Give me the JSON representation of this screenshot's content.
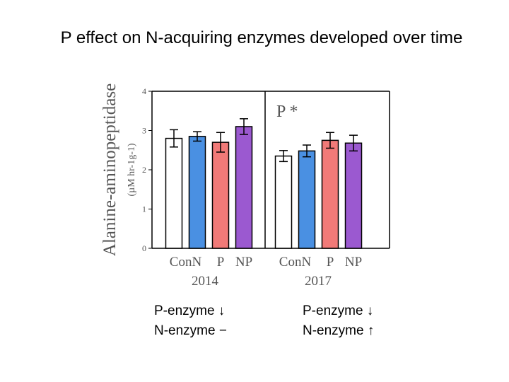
{
  "slide": {
    "title": "P effect on N-acquiring enzymes developed over time",
    "notes": [
      {
        "lines": [
          "P-enzyme ↓",
          "N-enzyme −"
        ]
      },
      {
        "lines": [
          "P-enzyme ↓",
          "N-enzyme ↑"
        ]
      }
    ]
  },
  "chart_data": {
    "type": "bar",
    "ylabel": "Alanine-aminopeptidase",
    "yunit": "(µM hr-1g-1)",
    "ylim": [
      0,
      4
    ],
    "yticks": [
      0,
      1,
      2,
      3,
      4
    ],
    "grid": false,
    "panels": [
      {
        "name": "2014",
        "annotation": "",
        "categories": [
          "Con",
          "N",
          "P",
          "NP"
        ],
        "values": [
          2.8,
          2.85,
          2.7,
          3.1
        ],
        "errors": [
          0.22,
          0.12,
          0.25,
          0.2
        ]
      },
      {
        "name": "2017",
        "annotation": "P *",
        "categories": [
          "Con",
          "N",
          "P",
          "NP"
        ],
        "values": [
          2.35,
          2.48,
          2.75,
          2.68
        ],
        "errors": [
          0.14,
          0.15,
          0.2,
          0.2
        ]
      }
    ],
    "colors": {
      "Con": "#ffffff",
      "N": "#4a90e2",
      "P": "#f17a78",
      "NP": "#9b59d0"
    }
  }
}
